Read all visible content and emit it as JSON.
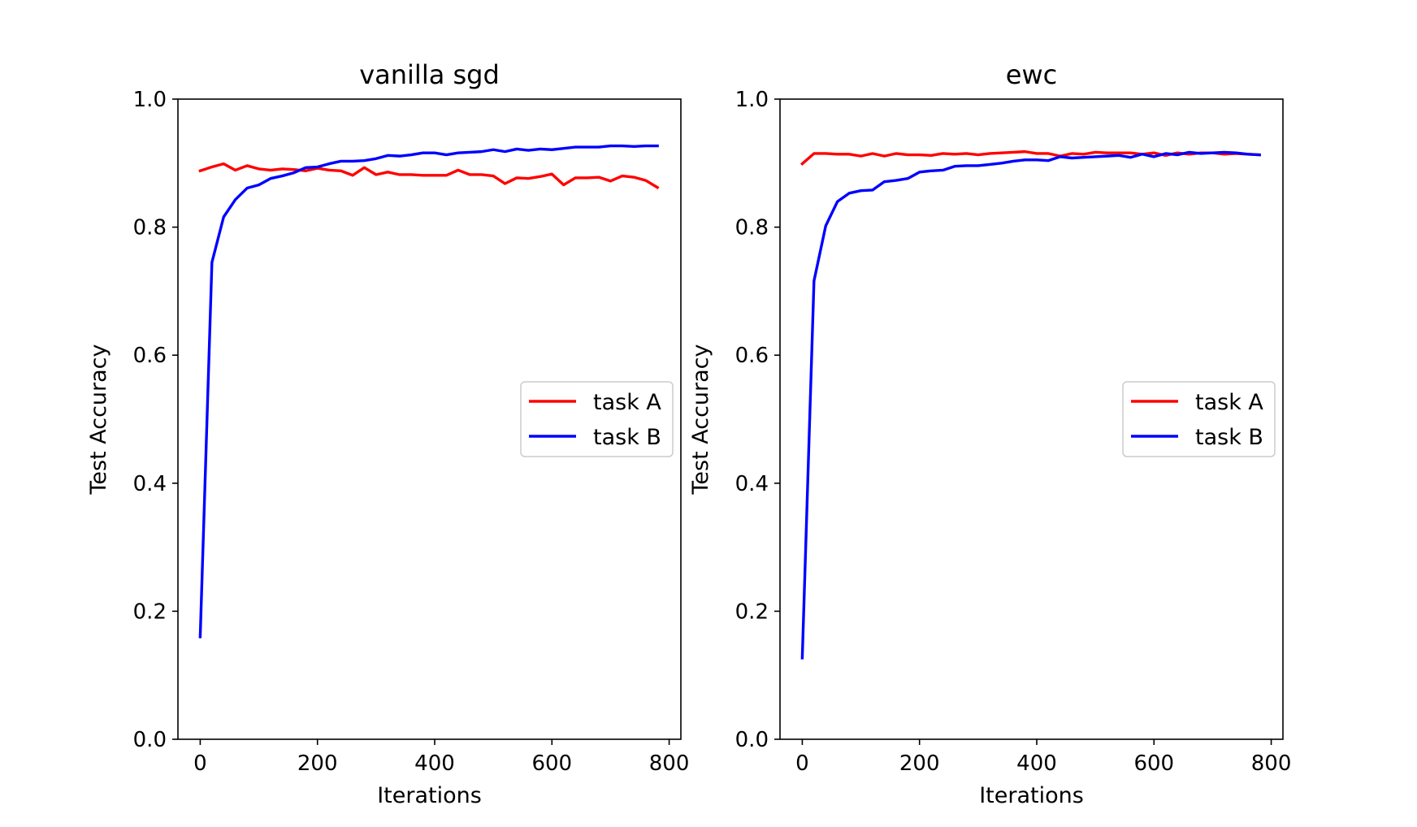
{
  "chart_data": [
    {
      "type": "line",
      "title": "vanilla sgd",
      "xlabel": "Iterations",
      "ylabel": "Test Accuracy",
      "xlim": [
        -38,
        820
      ],
      "ylim": [
        0.0,
        1.0
      ],
      "xticks": [
        "0",
        "200",
        "400",
        "600",
        "800"
      ],
      "yticks": [
        "0.0",
        "0.2",
        "0.4",
        "0.6",
        "0.8",
        "1.0"
      ],
      "grid": false,
      "legend_position": "center-right",
      "x": [
        0,
        20,
        40,
        60,
        80,
        100,
        120,
        140,
        160,
        180,
        200,
        220,
        240,
        260,
        280,
        300,
        320,
        340,
        360,
        380,
        400,
        420,
        440,
        460,
        480,
        500,
        520,
        540,
        560,
        580,
        600,
        620,
        640,
        660,
        680,
        700,
        720,
        740,
        760,
        780
      ],
      "series": [
        {
          "name": "task A",
          "color": "#ff0000",
          "values": [
            0.888,
            0.894,
            0.899,
            0.889,
            0.896,
            0.891,
            0.889,
            0.891,
            0.89,
            0.888,
            0.892,
            0.889,
            0.888,
            0.881,
            0.893,
            0.882,
            0.886,
            0.882,
            0.882,
            0.881,
            0.881,
            0.881,
            0.889,
            0.882,
            0.882,
            0.88,
            0.868,
            0.877,
            0.876,
            0.879,
            0.883,
            0.866,
            0.877,
            0.877,
            0.878,
            0.872,
            0.88,
            0.878,
            0.873,
            0.862
          ]
        },
        {
          "name": "task B",
          "color": "#0000ff",
          "values": [
            0.16,
            0.745,
            0.816,
            0.843,
            0.861,
            0.866,
            0.876,
            0.88,
            0.885,
            0.893,
            0.894,
            0.899,
            0.903,
            0.903,
            0.904,
            0.907,
            0.912,
            0.911,
            0.913,
            0.916,
            0.916,
            0.913,
            0.916,
            0.917,
            0.918,
            0.921,
            0.918,
            0.922,
            0.92,
            0.922,
            0.921,
            0.923,
            0.925,
            0.925,
            0.925,
            0.927,
            0.927,
            0.926,
            0.927,
            0.927
          ]
        }
      ]
    },
    {
      "type": "line",
      "title": "ewc",
      "xlabel": "Iterations",
      "ylabel": "Test Accuracy",
      "xlim": [
        -38,
        820
      ],
      "ylim": [
        0.0,
        1.0
      ],
      "xticks": [
        "0",
        "200",
        "400",
        "600",
        "800"
      ],
      "yticks": [
        "0.0",
        "0.2",
        "0.4",
        "0.6",
        "0.8",
        "1.0"
      ],
      "grid": false,
      "legend_position": "center-right",
      "x": [
        0,
        20,
        40,
        60,
        80,
        100,
        120,
        140,
        160,
        180,
        200,
        220,
        240,
        260,
        280,
        300,
        320,
        340,
        360,
        380,
        400,
        420,
        440,
        460,
        480,
        500,
        520,
        540,
        560,
        580,
        600,
        620,
        640,
        660,
        680,
        700,
        720,
        740,
        760,
        780
      ],
      "series": [
        {
          "name": "task A",
          "color": "#ff0000",
          "values": [
            0.899,
            0.915,
            0.915,
            0.914,
            0.914,
            0.911,
            0.915,
            0.911,
            0.915,
            0.913,
            0.913,
            0.912,
            0.915,
            0.914,
            0.915,
            0.913,
            0.915,
            0.916,
            0.917,
            0.918,
            0.915,
            0.915,
            0.911,
            0.915,
            0.914,
            0.917,
            0.916,
            0.916,
            0.916,
            0.914,
            0.916,
            0.912,
            0.916,
            0.914,
            0.916,
            0.916,
            0.914,
            0.915,
            0.914,
            0.913
          ]
        },
        {
          "name": "task B",
          "color": "#0000ff",
          "values": [
            0.127,
            0.716,
            0.802,
            0.84,
            0.853,
            0.857,
            0.858,
            0.871,
            0.873,
            0.876,
            0.886,
            0.888,
            0.889,
            0.895,
            0.896,
            0.896,
            0.898,
            0.9,
            0.903,
            0.905,
            0.905,
            0.904,
            0.91,
            0.908,
            0.909,
            0.91,
            0.911,
            0.912,
            0.909,
            0.914,
            0.91,
            0.915,
            0.913,
            0.917,
            0.915,
            0.916,
            0.917,
            0.916,
            0.914,
            0.913
          ]
        }
      ]
    }
  ]
}
